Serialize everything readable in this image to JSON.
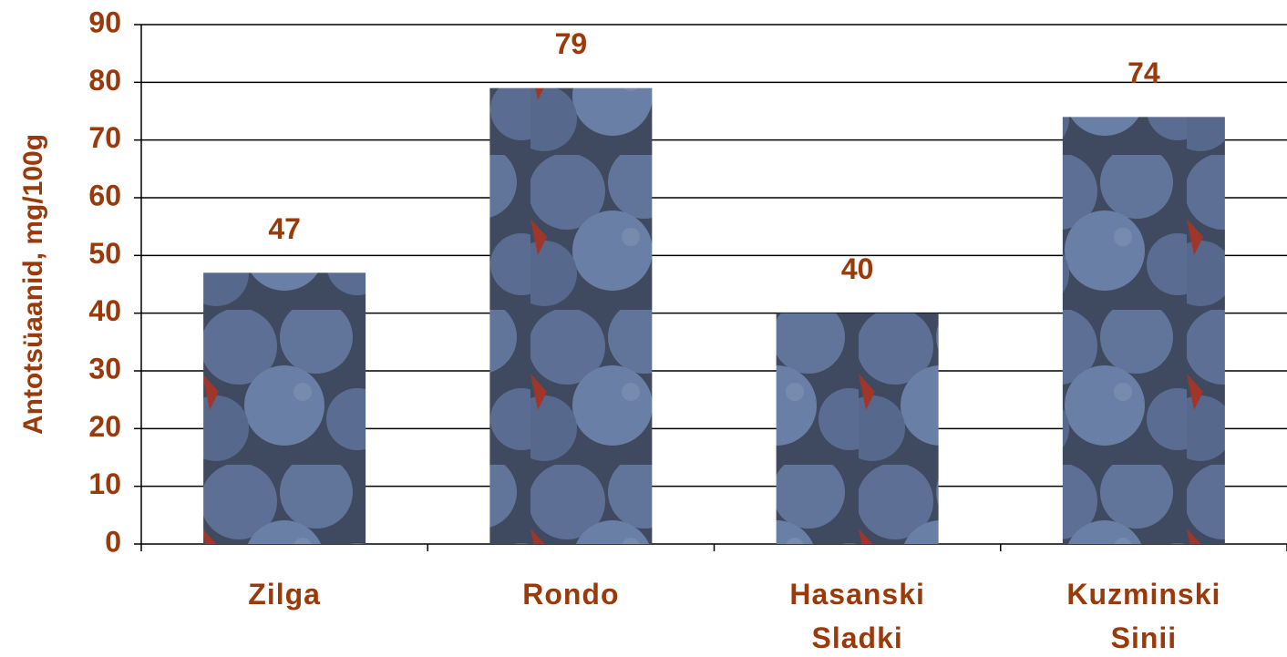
{
  "chart_data": {
    "type": "bar",
    "y_label": "Antotsüaanid, mg/100g",
    "categories": [
      "Zilga",
      "Rondo",
      "Hasanski Sladki",
      "Kuzminski Sinii"
    ],
    "values": [
      47,
      79,
      40,
      74
    ],
    "ylim": [
      0,
      90
    ],
    "yticks": [
      0,
      10,
      20,
      30,
      40,
      50,
      60,
      70,
      80,
      90
    ],
    "grid": true
  }
}
